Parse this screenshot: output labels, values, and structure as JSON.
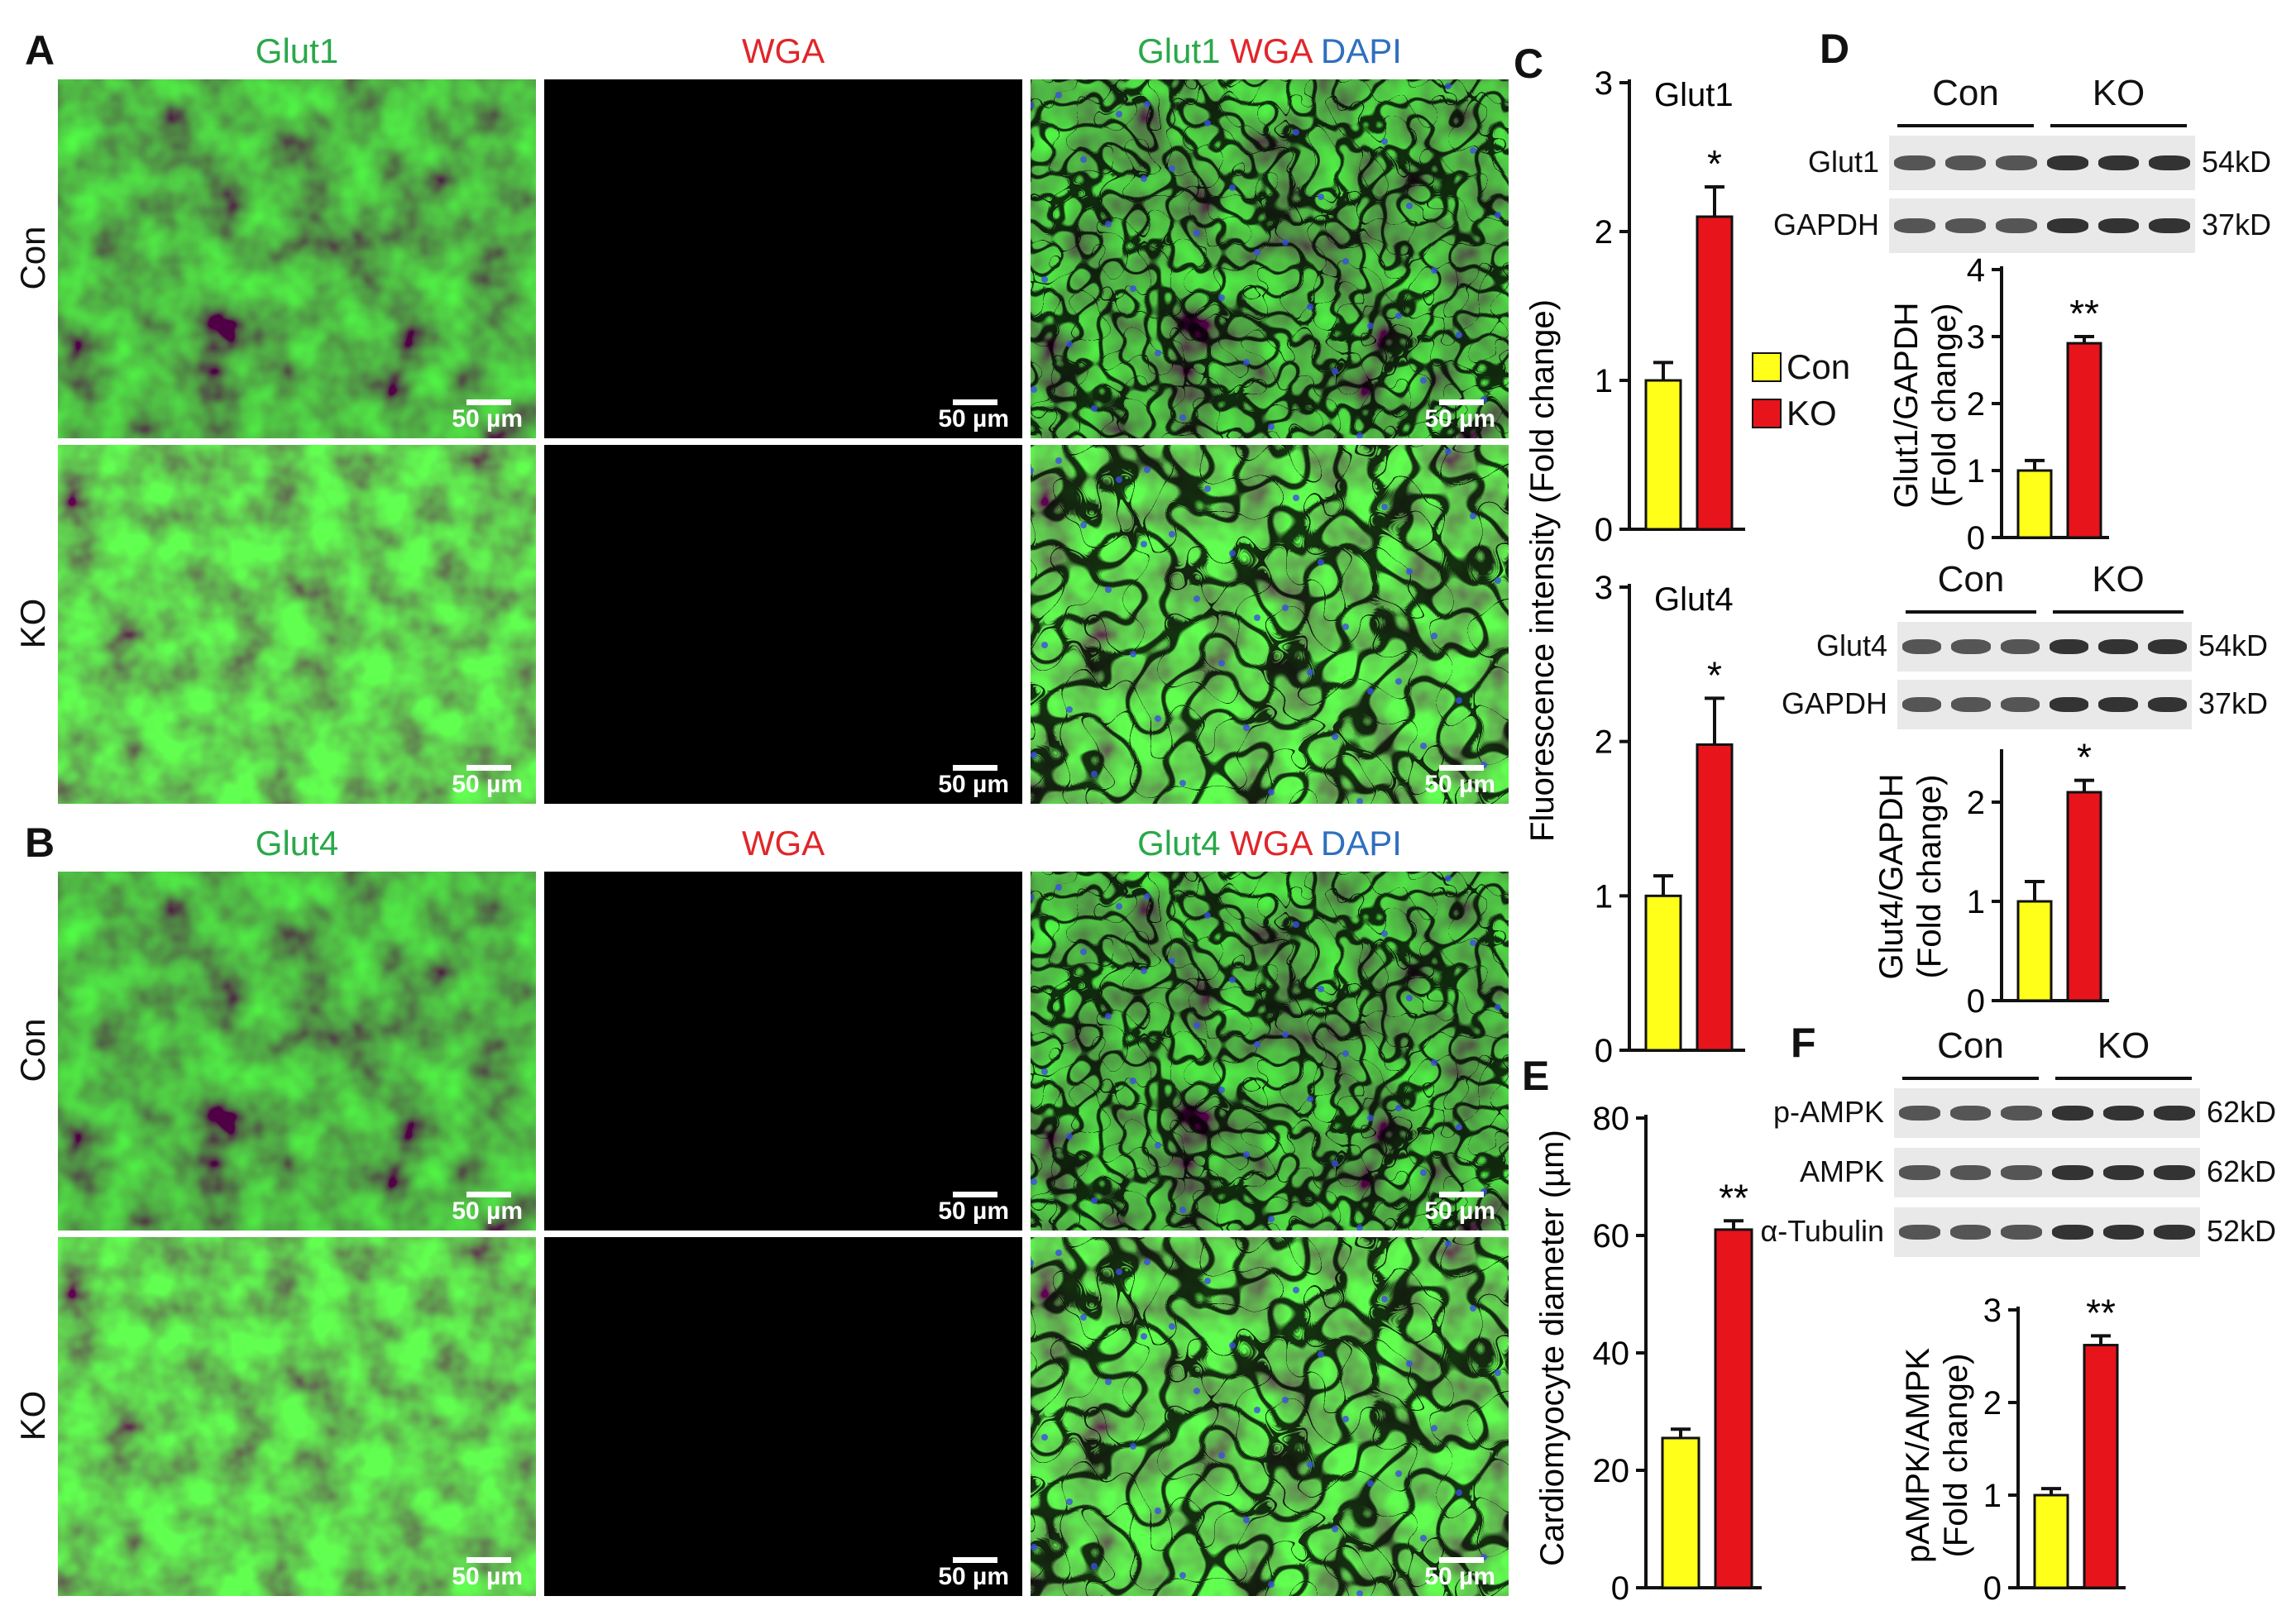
{
  "panels": {
    "A": "A",
    "B": "B",
    "C": "C",
    "D": "D",
    "E": "E",
    "F": "F"
  },
  "micrographs": {
    "A": {
      "channels": [
        "Glut1",
        "WGA"
      ],
      "merge": [
        {
          "t": "Glut1",
          "c": "#2aa84a"
        },
        {
          "t": " WGA",
          "c": "#e0262a"
        },
        {
          "t": " DAPI",
          "c": "#2f6fbf"
        }
      ],
      "rows": [
        "Con",
        "KO"
      ],
      "scale": "50 µm"
    },
    "B": {
      "channels": [
        "Glut4",
        "WGA"
      ],
      "merge": [
        {
          "t": "Glut4",
          "c": "#2aa84a"
        },
        {
          "t": " WGA",
          "c": "#e0262a"
        },
        {
          "t": " DAPI",
          "c": "#2f6fbf"
        }
      ],
      "rows": [
        "Con",
        "KO"
      ],
      "scale": "50 µm"
    }
  },
  "colors": {
    "con": "#ffff1a",
    "ko": "#e8141c",
    "green": "#2aa84a",
    "red": "#e0262a",
    "blue": "#2f6fbf"
  },
  "legend": {
    "con": "Con",
    "ko": "KO"
  },
  "blots": {
    "D1": {
      "groups": [
        "Con",
        "KO"
      ],
      "rows": [
        {
          "name": "Glut1",
          "size": "54kD"
        },
        {
          "name": "GAPDH",
          "size": "37kD"
        }
      ]
    },
    "D2": {
      "groups": [
        "Con",
        "KO"
      ],
      "rows": [
        {
          "name": "Glut4",
          "size": "54kD"
        },
        {
          "name": "GAPDH",
          "size": "37kD"
        }
      ]
    },
    "F": {
      "groups": [
        "Con",
        "KO"
      ],
      "rows": [
        {
          "name": "p-AMPK",
          "size": "62kD"
        },
        {
          "name": "AMPK",
          "size": "62kD"
        },
        {
          "name": "α-Tubulin",
          "size": "52kD"
        }
      ]
    }
  },
  "chart_data": [
    {
      "id": "C-glut1",
      "type": "bar",
      "title": "Glut1",
      "categories": [
        "Con",
        "KO"
      ],
      "values": [
        1.0,
        2.1
      ],
      "errors": [
        0.12,
        0.2
      ],
      "sig": "*",
      "ylim": [
        0,
        3
      ],
      "ticks": [
        0,
        1,
        2,
        3
      ],
      "ylabel": "Fluorescence intensity (Fold change)"
    },
    {
      "id": "C-glut4",
      "type": "bar",
      "title": "Glut4",
      "categories": [
        "Con",
        "KO"
      ],
      "values": [
        1.0,
        1.98
      ],
      "errors": [
        0.13,
        0.3
      ],
      "sig": "*",
      "ylim": [
        0,
        3
      ],
      "ticks": [
        0,
        1,
        2,
        3
      ],
      "ylabel": ""
    },
    {
      "id": "E",
      "type": "bar",
      "title": "",
      "categories": [
        "Con",
        "KO"
      ],
      "values": [
        25.5,
        61
      ],
      "errors": [
        1.5,
        1.5
      ],
      "sig": "**",
      "ylim": [
        0,
        80
      ],
      "ticks": [
        0,
        20,
        40,
        60,
        80
      ],
      "ylabel": "Cardiomyocyte diameter (µm)"
    },
    {
      "id": "D-glut1",
      "type": "bar",
      "title": "",
      "categories": [
        "Con",
        "KO"
      ],
      "values": [
        1.0,
        2.9
      ],
      "errors": [
        0.15,
        0.1
      ],
      "sig": "**",
      "ylim": [
        0,
        4
      ],
      "ticks": [
        0,
        1,
        2,
        3,
        4
      ],
      "ylabel": "Glut1/GAPDH",
      "ylabel2": "(Fold change)"
    },
    {
      "id": "D-glut4",
      "type": "bar",
      "title": "",
      "categories": [
        "Con",
        "KO"
      ],
      "values": [
        1.0,
        2.1
      ],
      "errors": [
        0.2,
        0.12
      ],
      "sig": "*",
      "ylim": [
        0,
        2.5
      ],
      "ticks": [
        0,
        1,
        2
      ],
      "ylabel": "Glut4/GAPDH",
      "ylabel2": "(Fold change)"
    },
    {
      "id": "F",
      "type": "bar",
      "title": "",
      "categories": [
        "Con",
        "KO"
      ],
      "values": [
        1.0,
        2.62
      ],
      "errors": [
        0.07,
        0.1
      ],
      "sig": "**",
      "ylim": [
        0,
        3
      ],
      "ticks": [
        0,
        1,
        2,
        3
      ],
      "ylabel": "pAMPK/AMPK",
      "ylabel2": "(Fold change)"
    }
  ]
}
